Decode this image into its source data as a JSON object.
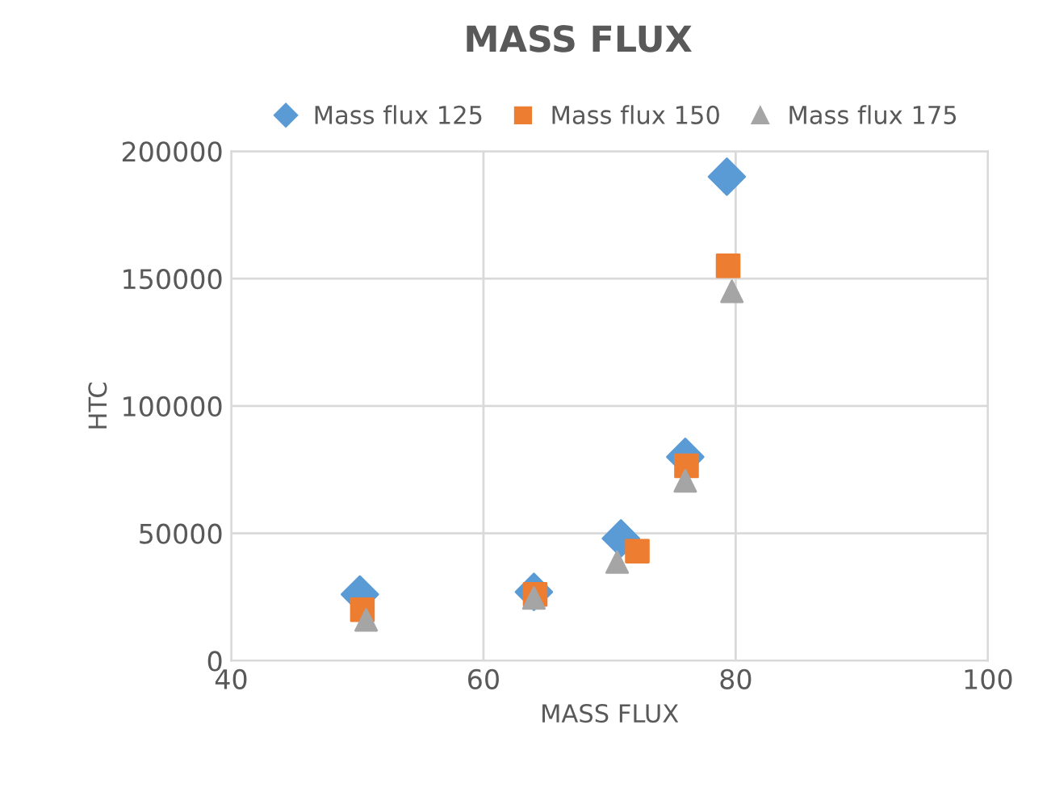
{
  "chart_data": {
    "type": "scatter",
    "title": "MASS FLUX",
    "xlabel": "MASS FLUX",
    "ylabel": "HTC",
    "xlim": [
      40,
      100
    ],
    "xticks": [
      40,
      60,
      80,
      100
    ],
    "ylim": [
      0,
      200000
    ],
    "yticks": [
      0,
      50000,
      100000,
      150000,
      200000
    ],
    "grid": true,
    "legend": "top",
    "series": [
      {
        "name": "Mass flux 125",
        "color": "#5b9bd5",
        "marker": "diamond",
        "x": [
          50.2,
          64.0,
          70.9,
          76.0,
          79.3
        ],
        "values": [
          26000,
          27000,
          48000,
          80000,
          190000
        ]
      },
      {
        "name": "Mass flux 150",
        "color": "#ed7d31",
        "marker": "square",
        "x": [
          50.4,
          64.1,
          72.2,
          76.1,
          79.4
        ],
        "values": [
          20000,
          26000,
          43000,
          76500,
          155000
        ]
      },
      {
        "name": "Mass flux 175",
        "color": "#a5a5a5",
        "marker": "triangle",
        "x": [
          50.7,
          64.0,
          70.6,
          76.0,
          79.7
        ],
        "values": [
          16000,
          24600,
          38700,
          70600,
          145000
        ]
      }
    ]
  }
}
